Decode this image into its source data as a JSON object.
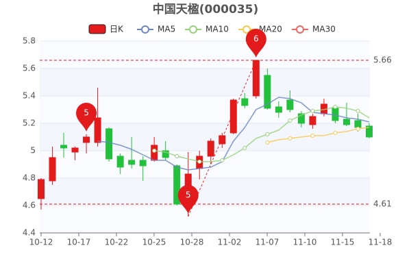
{
  "chart_data": {
    "type": "candlestick",
    "title": "中国天楹(000035)",
    "xtick_labels": [
      "10-12",
      "10-17",
      "10-22",
      "10-25",
      "10-28",
      "11-02",
      "11-07",
      "11-10",
      "11-15",
      "11-18"
    ],
    "ylim": [
      4.4,
      5.8
    ],
    "yticks": [
      4.4,
      4.6,
      4.8,
      5,
      5.2,
      5.4,
      5.6,
      5.8
    ],
    "candles": {
      "name": "日K",
      "up_color": "#e31a1c",
      "down_color": "#22c03c",
      "open": [
        4.65,
        4.78,
        5.04,
        4.99,
        5.06,
        5.06,
        5.16,
        4.96,
        4.93,
        4.93,
        4.93,
        5.0,
        4.89,
        4.63,
        4.87,
        4.96,
        5.05,
        5.13,
        5.38,
        5.4,
        5.55,
        5.32,
        5.37,
        5.27,
        5.19,
        5.27,
        5.31,
        5.23,
        5.22,
        5.18
      ],
      "close": [
        4.79,
        4.95,
        5.02,
        5.02,
        5.1,
        5.24,
        4.94,
        4.88,
        4.9,
        4.89,
        5.04,
        4.95,
        4.61,
        4.83,
        4.96,
        5.07,
        5.11,
        5.37,
        5.33,
        5.66,
        5.31,
        5.28,
        5.3,
        5.2,
        5.25,
        5.34,
        5.22,
        5.19,
        5.17,
        5.1
      ],
      "high": [
        4.8,
        5.03,
        5.13,
        5.03,
        5.12,
        5.46,
        5.17,
        4.98,
        5.1,
        4.96,
        5.1,
        5.07,
        4.9,
        4.99,
        5.0,
        5.09,
        5.13,
        5.38,
        5.42,
        5.66,
        5.6,
        5.36,
        5.44,
        5.29,
        5.27,
        5.38,
        5.33,
        5.35,
        5.27,
        5.2
      ],
      "low": [
        4.57,
        4.75,
        4.95,
        4.93,
        4.98,
        5.03,
        4.92,
        4.83,
        4.87,
        4.78,
        4.92,
        4.93,
        4.6,
        4.52,
        4.79,
        4.9,
        5.02,
        5.12,
        5.31,
        5.38,
        5.3,
        5.24,
        5.28,
        5.17,
        5.16,
        5.25,
        5.2,
        5.18,
        5.14,
        5.09
      ]
    },
    "series": [
      {
        "name": "MA5",
        "color": "#6a86c8",
        "values": [
          null,
          null,
          null,
          null,
          null,
          5.07,
          5.06,
          5.04,
          5.01,
          4.97,
          4.93,
          4.93,
          4.88,
          4.86,
          4.87,
          4.88,
          4.92,
          5.07,
          5.17,
          5.3,
          5.34,
          5.39,
          5.38,
          5.35,
          5.28,
          5.27,
          5.26,
          5.24,
          5.23,
          5.21
        ]
      },
      {
        "name": "MA10",
        "color": "#97d27b",
        "values": [
          null,
          null,
          null,
          null,
          null,
          null,
          null,
          null,
          null,
          null,
          5.0,
          4.99,
          4.96,
          4.94,
          4.92,
          4.92,
          4.93,
          4.97,
          5.02,
          5.09,
          5.12,
          5.15,
          5.22,
          5.26,
          5.29,
          5.3,
          5.32,
          5.31,
          5.29,
          5.24
        ]
      },
      {
        "name": "MA20",
        "color": "#f7c94f",
        "values": [
          null,
          null,
          null,
          null,
          null,
          null,
          null,
          null,
          null,
          null,
          null,
          null,
          null,
          null,
          null,
          null,
          null,
          null,
          null,
          null,
          5.06,
          5.08,
          5.09,
          5.1,
          5.11,
          5.11,
          5.13,
          5.14,
          5.16,
          5.17
        ]
      },
      {
        "name": "MA30",
        "color": "#ee6666",
        "values": [
          null,
          null,
          null,
          null,
          null,
          null,
          null,
          null,
          null,
          null,
          null,
          null,
          null,
          null,
          null,
          null,
          null,
          null,
          null,
          null,
          null,
          null,
          null,
          null,
          null,
          null,
          null,
          null,
          null,
          null
        ]
      }
    ],
    "ref_lines": [
      5.66,
      4.61
    ],
    "markers": [
      {
        "label": "5",
        "candle_index": 4,
        "value": 5.12
      },
      {
        "label": "5",
        "candle_index": 13,
        "value": 4.52
      },
      {
        "label": "6",
        "candle_index": 19,
        "value": 5.66
      }
    ]
  }
}
